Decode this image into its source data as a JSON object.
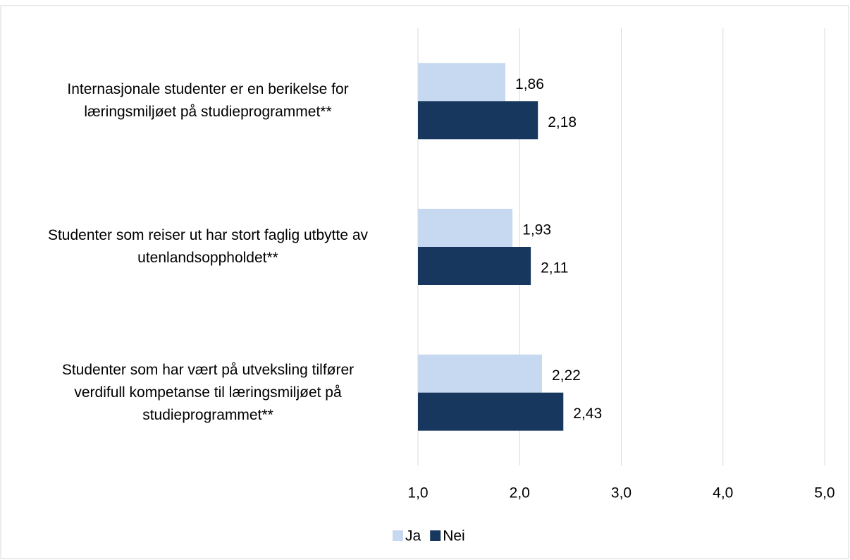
{
  "chart_data": {
    "type": "bar",
    "orientation": "horizontal",
    "categories": [
      "Internasjonale studenter er en berikelse for læringsmiljøet på studieprogrammet**",
      "Studenter som reiser ut har stort faglig utbytte av utenlandsoppholdet**",
      "Studenter som har vært på utveksling tilfører verdifull kompetanse til læringsmiljøet på studieprogrammet**"
    ],
    "series": [
      {
        "name": "Ja",
        "color": "#c6d9f1",
        "values": [
          1.86,
          1.93,
          2.22
        ],
        "value_labels": [
          "1,86",
          "1,93",
          "2,22"
        ]
      },
      {
        "name": "Nei",
        "color": "#17375e",
        "values": [
          2.18,
          2.11,
          2.43
        ],
        "value_labels": [
          "2,18",
          "2,11",
          "2,43"
        ]
      }
    ],
    "xlim": [
      1,
      5
    ],
    "xticks": [
      {
        "value": 1,
        "label": "1,0"
      },
      {
        "value": 2,
        "label": "2,0"
      },
      {
        "value": 3,
        "label": "3,0"
      },
      {
        "value": 4,
        "label": "4,0"
      },
      {
        "value": 5,
        "label": "5,0"
      }
    ],
    "grid": true,
    "legend": "bottom"
  }
}
